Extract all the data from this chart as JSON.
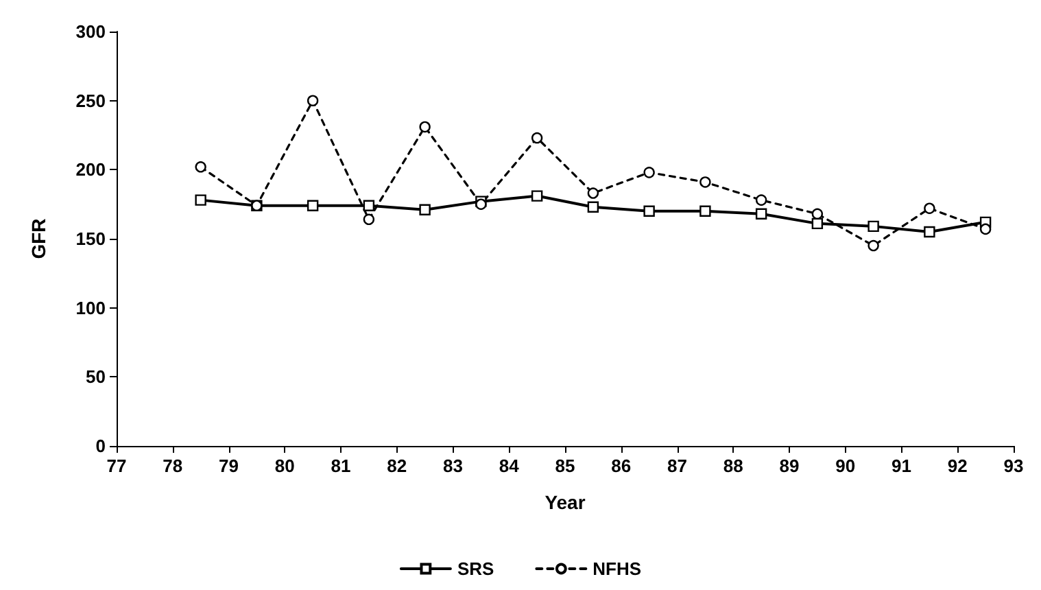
{
  "chart_data": {
    "type": "line",
    "xlabel": "Year",
    "ylabel": "GFR",
    "x": [
      78.5,
      79.5,
      80.5,
      81.5,
      82.5,
      83.5,
      84.5,
      85.5,
      86.5,
      87.5,
      88.5,
      89.5,
      90.5,
      91.5,
      92.5
    ],
    "series": [
      {
        "name": "SRS",
        "color": "#000000",
        "marker": "square",
        "line_style": "solid",
        "values": [
          178,
          174,
          174,
          174,
          171,
          177,
          181,
          173,
          170,
          170,
          168,
          161,
          159,
          155,
          162
        ]
      },
      {
        "name": "NFHS",
        "color": "#000000",
        "marker": "circle",
        "line_style": "dashed",
        "values": [
          202,
          174,
          250,
          164,
          231,
          175,
          223,
          183,
          198,
          191,
          178,
          168,
          145,
          172,
          157
        ]
      }
    ],
    "xlim": [
      77,
      93
    ],
    "xticks": [
      77,
      78,
      79,
      80,
      81,
      82,
      83,
      84,
      85,
      86,
      87,
      88,
      89,
      90,
      91,
      92,
      93
    ],
    "ylim": [
      0,
      300
    ],
    "yticks": [
      0,
      50,
      100,
      150,
      200,
      250,
      300
    ],
    "grid": false,
    "legend": "bottom"
  }
}
